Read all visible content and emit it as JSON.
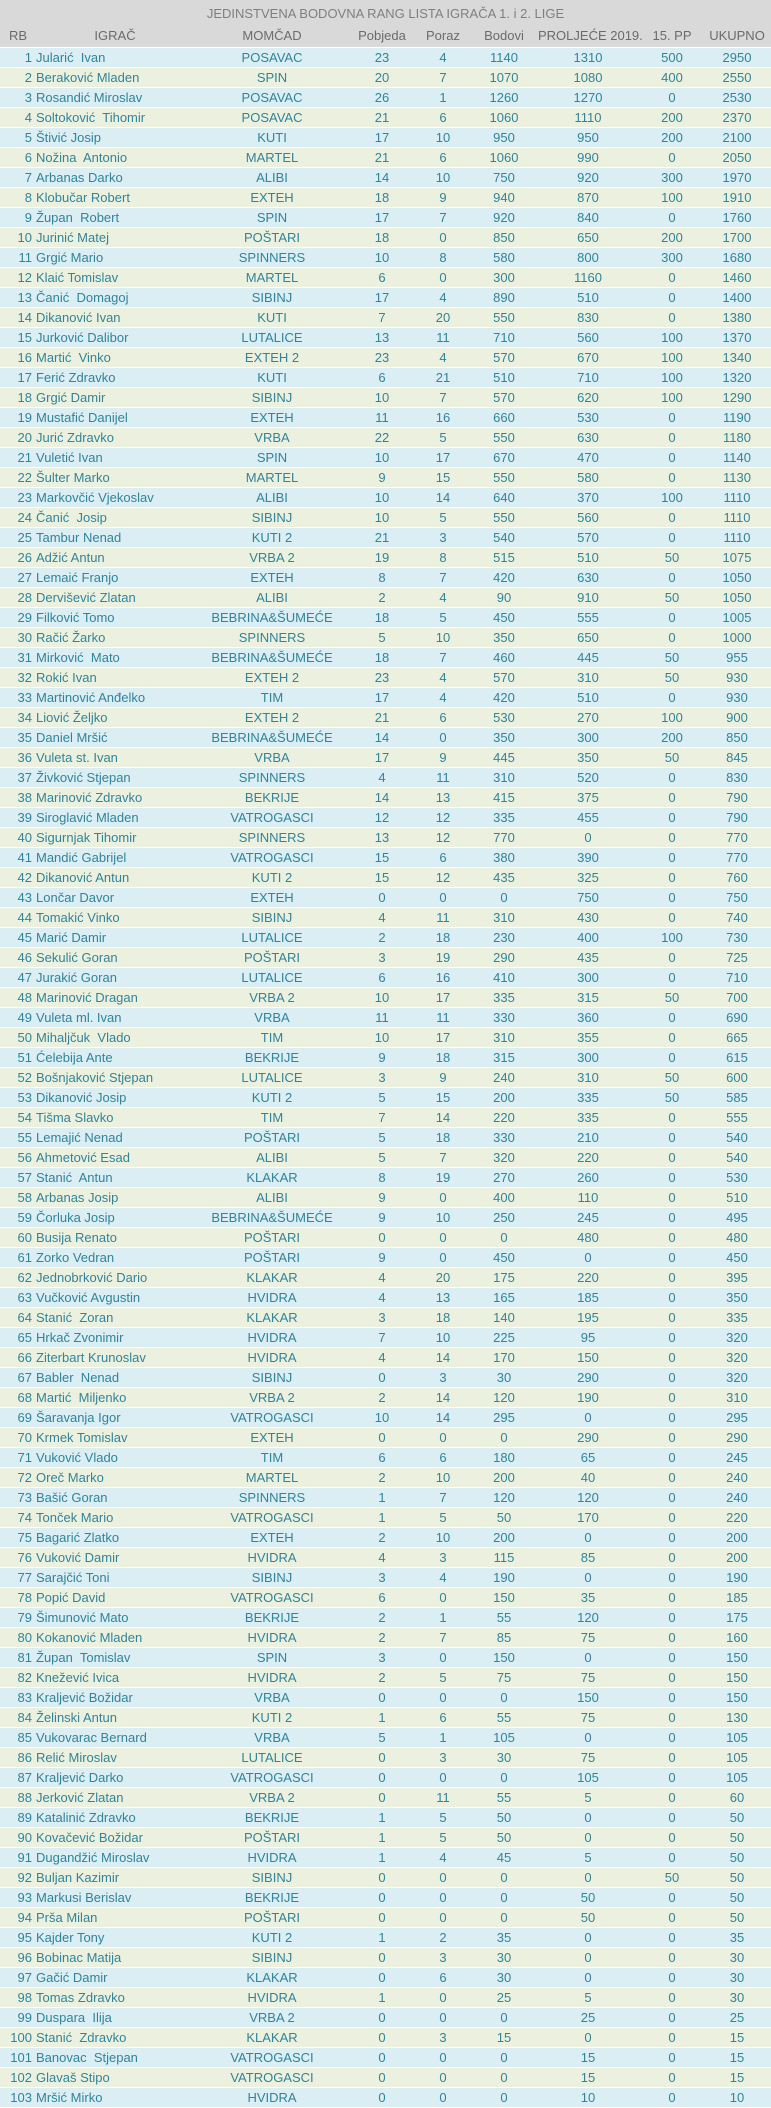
{
  "title": "JEDINSTVENA BODOVNA RANG LISTA IGRAČA 1. i 2. LIGE",
  "columns": [
    "RB",
    "IGRAČ",
    "MOMČAD",
    "Pobjeda",
    "Poraz",
    "Bodovi",
    "PROLJEĆE 2019.",
    "15. PP",
    "UKUPNO"
  ],
  "colors": {
    "header_bg": "#d9d9d9",
    "row_odd": "#daeef3",
    "row_even": "#ebf1de",
    "text": "#31849b"
  },
  "rows": [
    [
      "1",
      "Jularić  Ivan",
      "POSAVAC",
      "23",
      "4",
      "1140",
      "1310",
      "500",
      "2950"
    ],
    [
      "2",
      "Beraković Mladen",
      "SPIN",
      "20",
      "7",
      "1070",
      "1080",
      "400",
      "2550"
    ],
    [
      "3",
      "Rosandić Miroslav",
      "POSAVAC",
      "26",
      "1",
      "1260",
      "1270",
      "0",
      "2530"
    ],
    [
      "4",
      "Soltoković  Tihomir",
      "POSAVAC",
      "21",
      "6",
      "1060",
      "1110",
      "200",
      "2370"
    ],
    [
      "5",
      "Štivić Josip",
      "KUTI",
      "17",
      "10",
      "950",
      "950",
      "200",
      "2100"
    ],
    [
      "6",
      "Nožina  Antonio",
      "MARTEL",
      "21",
      "6",
      "1060",
      "990",
      "0",
      "2050"
    ],
    [
      "7",
      "Arbanas Darko",
      "ALIBI",
      "14",
      "10",
      "750",
      "920",
      "300",
      "1970"
    ],
    [
      "8",
      "Klobučar Robert",
      "EXTEH",
      "18",
      "9",
      "940",
      "870",
      "100",
      "1910"
    ],
    [
      "9",
      "Župan  Robert",
      "SPIN",
      "17",
      "7",
      "920",
      "840",
      "0",
      "1760"
    ],
    [
      "10",
      "Jurinić Matej",
      "POŠTARI",
      "18",
      "0",
      "850",
      "650",
      "200",
      "1700"
    ],
    [
      "11",
      "Grgić Mario",
      "SPINNERS",
      "10",
      "8",
      "580",
      "800",
      "300",
      "1680"
    ],
    [
      "12",
      "Klaić Tomislav",
      "MARTEL",
      "6",
      "0",
      "300",
      "1160",
      "0",
      "1460"
    ],
    [
      "13",
      "Čanić  Domagoj",
      "SIBINJ",
      "17",
      "4",
      "890",
      "510",
      "0",
      "1400"
    ],
    [
      "14",
      "Dikanović Ivan",
      "KUTI",
      "7",
      "20",
      "550",
      "830",
      "0",
      "1380"
    ],
    [
      "15",
      "Jurković Dalibor",
      "LUTALICE",
      "13",
      "11",
      "710",
      "560",
      "100",
      "1370"
    ],
    [
      "16",
      "Martić  Vinko",
      "EXTEH 2",
      "23",
      "4",
      "570",
      "670",
      "100",
      "1340"
    ],
    [
      "17",
      "Ferić Zdravko",
      "KUTI",
      "6",
      "21",
      "510",
      "710",
      "100",
      "1320"
    ],
    [
      "18",
      "Grgić Damir",
      "SIBINJ",
      "10",
      "7",
      "570",
      "620",
      "100",
      "1290"
    ],
    [
      "19",
      "Mustafić Danijel",
      "EXTEH",
      "11",
      "16",
      "660",
      "530",
      "0",
      "1190"
    ],
    [
      "20",
      "Jurić Zdravko",
      "VRBA",
      "22",
      "5",
      "550",
      "630",
      "0",
      "1180"
    ],
    [
      "21",
      "Vuletić Ivan",
      "SPIN",
      "10",
      "17",
      "670",
      "470",
      "0",
      "1140"
    ],
    [
      "22",
      "Šulter Marko",
      "MARTEL",
      "9",
      "15",
      "550",
      "580",
      "0",
      "1130"
    ],
    [
      "23",
      "Markovčić Vjekoslav",
      "ALIBI",
      "10",
      "14",
      "640",
      "370",
      "100",
      "1110"
    ],
    [
      "24",
      "Čanić  Josip",
      "SIBINJ",
      "10",
      "5",
      "550",
      "560",
      "0",
      "1110"
    ],
    [
      "25",
      "Tambur Nenad",
      "KUTI 2",
      "21",
      "3",
      "540",
      "570",
      "0",
      "1110"
    ],
    [
      "26",
      "Adžić Antun",
      "VRBA 2",
      "19",
      "8",
      "515",
      "510",
      "50",
      "1075"
    ],
    [
      "27",
      "Lemaić Franjo",
      "EXTEH",
      "8",
      "7",
      "420",
      "630",
      "0",
      "1050"
    ],
    [
      "28",
      "Dervišević Zlatan",
      "ALIBI",
      "2",
      "4",
      "90",
      "910",
      "50",
      "1050"
    ],
    [
      "29",
      "Filković Tomo",
      "BEBRINA&ŠUMEĆE",
      "18",
      "5",
      "450",
      "555",
      "0",
      "1005"
    ],
    [
      "30",
      "Račić Žarko",
      "SPINNERS",
      "5",
      "10",
      "350",
      "650",
      "0",
      "1000"
    ],
    [
      "31",
      "Mirković  Mato",
      "BEBRINA&ŠUMEĆE",
      "18",
      "7",
      "460",
      "445",
      "50",
      "955"
    ],
    [
      "32",
      "Rokić Ivan",
      "EXTEH 2",
      "23",
      "4",
      "570",
      "310",
      "50",
      "930"
    ],
    [
      "33",
      "Martinović Anđelko",
      "TIM",
      "17",
      "4",
      "420",
      "510",
      "0",
      "930"
    ],
    [
      "34",
      "Liović Željko",
      "EXTEH 2",
      "21",
      "6",
      "530",
      "270",
      "100",
      "900"
    ],
    [
      "35",
      "Daniel Mršić",
      "BEBRINA&ŠUMEĆE",
      "14",
      "0",
      "350",
      "300",
      "200",
      "850"
    ],
    [
      "36",
      "Vuleta st. Ivan",
      "VRBA",
      "17",
      "9",
      "445",
      "350",
      "50",
      "845"
    ],
    [
      "37",
      "Živković Stjepan",
      "SPINNERS",
      "4",
      "11",
      "310",
      "520",
      "0",
      "830"
    ],
    [
      "38",
      "Marinović Zdravko",
      "BEKRIJE",
      "14",
      "13",
      "415",
      "375",
      "0",
      "790"
    ],
    [
      "39",
      "Siroglavić Mladen",
      "VATROGASCI",
      "12",
      "12",
      "335",
      "455",
      "0",
      "790"
    ],
    [
      "40",
      "Sigurnjak Tihomir",
      "SPINNERS",
      "13",
      "12",
      "770",
      "0",
      "0",
      "770"
    ],
    [
      "41",
      "Mandić Gabrijel",
      "VATROGASCI",
      "15",
      "6",
      "380",
      "390",
      "0",
      "770"
    ],
    [
      "42",
      "Dikanović Antun",
      "KUTI 2",
      "15",
      "12",
      "435",
      "325",
      "0",
      "760"
    ],
    [
      "43",
      "Lončar Davor",
      "EXTEH",
      "0",
      "0",
      "0",
      "750",
      "0",
      "750"
    ],
    [
      "44",
      "Tomakić Vinko",
      "SIBINJ",
      "4",
      "11",
      "310",
      "430",
      "0",
      "740"
    ],
    [
      "45",
      "Marić Damir",
      "LUTALICE",
      "2",
      "18",
      "230",
      "400",
      "100",
      "730"
    ],
    [
      "46",
      "Sekulić Goran",
      "POŠTARI",
      "3",
      "19",
      "290",
      "435",
      "0",
      "725"
    ],
    [
      "47",
      "Jurakić Goran",
      "LUTALICE",
      "6",
      "16",
      "410",
      "300",
      "0",
      "710"
    ],
    [
      "48",
      "Marinović Dragan",
      "VRBA 2",
      "10",
      "17",
      "335",
      "315",
      "50",
      "700"
    ],
    [
      "49",
      "Vuleta ml. Ivan",
      "VRBA",
      "11",
      "11",
      "330",
      "360",
      "0",
      "690"
    ],
    [
      "50",
      "Mihaljčuk  Vlado",
      "TIM",
      "10",
      "17",
      "310",
      "355",
      "0",
      "665"
    ],
    [
      "51",
      "Ćelebija Ante",
      "BEKRIJE",
      "9",
      "18",
      "315",
      "300",
      "0",
      "615"
    ],
    [
      "52",
      "Bošnjaković Stjepan",
      "LUTALICE",
      "3",
      "9",
      "240",
      "310",
      "50",
      "600"
    ],
    [
      "53",
      "Dikanović Josip",
      "KUTI 2",
      "5",
      "15",
      "200",
      "335",
      "50",
      "585"
    ],
    [
      "54",
      "Tišma Slavko",
      "TIM",
      "7",
      "14",
      "220",
      "335",
      "0",
      "555"
    ],
    [
      "55",
      "Lemajić Nenad",
      "POŠTARI",
      "5",
      "18",
      "330",
      "210",
      "0",
      "540"
    ],
    [
      "56",
      "Ahmetović Esad",
      "ALIBI",
      "5",
      "7",
      "320",
      "220",
      "0",
      "540"
    ],
    [
      "57",
      "Stanić  Antun",
      "KLAKAR",
      "8",
      "19",
      "270",
      "260",
      "0",
      "530"
    ],
    [
      "58",
      "Arbanas Josip",
      "ALIBI",
      "9",
      "0",
      "400",
      "110",
      "0",
      "510"
    ],
    [
      "59",
      "Čorluka Josip",
      "BEBRINA&ŠUMEĆE",
      "9",
      "10",
      "250",
      "245",
      "0",
      "495"
    ],
    [
      "60",
      "Busija Renato",
      "POŠTARI",
      "0",
      "0",
      "0",
      "480",
      "0",
      "480"
    ],
    [
      "61",
      "Zorko Vedran",
      "POŠTARI",
      "9",
      "0",
      "450",
      "0",
      "0",
      "450"
    ],
    [
      "62",
      "Jednobrković Dario",
      "KLAKAR",
      "4",
      "20",
      "175",
      "220",
      "0",
      "395"
    ],
    [
      "63",
      "Vučković Avgustin",
      "HVIDRA",
      "4",
      "13",
      "165",
      "185",
      "0",
      "350"
    ],
    [
      "64",
      "Stanić  Zoran",
      "KLAKAR",
      "3",
      "18",
      "140",
      "195",
      "0",
      "335"
    ],
    [
      "65",
      "Hrkač Zvonimir",
      "HVIDRA",
      "7",
      "10",
      "225",
      "95",
      "0",
      "320"
    ],
    [
      "66",
      "Ziterbart Krunoslav",
      "HVIDRA",
      "4",
      "14",
      "170",
      "150",
      "0",
      "320"
    ],
    [
      "67",
      "Babler  Nenad",
      "SIBINJ",
      "0",
      "3",
      "30",
      "290",
      "0",
      "320"
    ],
    [
      "68",
      "Martić  Miljenko",
      "VRBA 2",
      "2",
      "14",
      "120",
      "190",
      "0",
      "310"
    ],
    [
      "69",
      "Šaravanja Igor",
      "VATROGASCI",
      "10",
      "14",
      "295",
      "0",
      "0",
      "295"
    ],
    [
      "70",
      "Krmek Tomislav",
      "EXTEH",
      "0",
      "0",
      "0",
      "290",
      "0",
      "290"
    ],
    [
      "71",
      "Vuković Vlado",
      "TIM",
      "6",
      "6",
      "180",
      "65",
      "0",
      "245"
    ],
    [
      "72",
      "Oreč Marko",
      "MARTEL",
      "2",
      "10",
      "200",
      "40",
      "0",
      "240"
    ],
    [
      "73",
      "Bašić Goran",
      "SPINNERS",
      "1",
      "7",
      "120",
      "120",
      "0",
      "240"
    ],
    [
      "74",
      "Tonček Mario",
      "VATROGASCI",
      "1",
      "5",
      "50",
      "170",
      "0",
      "220"
    ],
    [
      "75",
      "Bagarić Zlatko",
      "EXTEH",
      "2",
      "10",
      "200",
      "0",
      "0",
      "200"
    ],
    [
      "76",
      "Vuković Damir",
      "HVIDRA",
      "4",
      "3",
      "115",
      "85",
      "0",
      "200"
    ],
    [
      "77",
      "Sarajčić Toni",
      "SIBINJ",
      "3",
      "4",
      "190",
      "0",
      "0",
      "190"
    ],
    [
      "78",
      "Popić David",
      "VATROGASCI",
      "6",
      "0",
      "150",
      "35",
      "0",
      "185"
    ],
    [
      "79",
      "Šimunović Mato",
      "BEKRIJE",
      "2",
      "1",
      "55",
      "120",
      "0",
      "175"
    ],
    [
      "80",
      "Kokanović Mladen",
      "HVIDRA",
      "2",
      "7",
      "85",
      "75",
      "0",
      "160"
    ],
    [
      "81",
      "Župan  Tomislav",
      "SPIN",
      "3",
      "0",
      "150",
      "0",
      "0",
      "150"
    ],
    [
      "82",
      "Knežević Ivica",
      "HVIDRA",
      "2",
      "5",
      "75",
      "75",
      "0",
      "150"
    ],
    [
      "83",
      "Kraljević Božidar",
      "VRBA",
      "0",
      "0",
      "0",
      "150",
      "0",
      "150"
    ],
    [
      "84",
      "Želinski Antun",
      "KUTI 2",
      "1",
      "6",
      "55",
      "75",
      "0",
      "130"
    ],
    [
      "85",
      "Vukovarac Bernard",
      "VRBA",
      "5",
      "1",
      "105",
      "0",
      "0",
      "105"
    ],
    [
      "86",
      "Relić Miroslav",
      "LUTALICE",
      "0",
      "3",
      "30",
      "75",
      "0",
      "105"
    ],
    [
      "87",
      "Kraljević Darko",
      "VATROGASCI",
      "0",
      "0",
      "0",
      "105",
      "0",
      "105"
    ],
    [
      "88",
      "Jerković Zlatan",
      "VRBA 2",
      "0",
      "11",
      "55",
      "5",
      "0",
      "60"
    ],
    [
      "89",
      "Katalinić Zdravko",
      "BEKRIJE",
      "1",
      "5",
      "50",
      "0",
      "0",
      "50"
    ],
    [
      "90",
      "Kovačević Božidar",
      "POŠTARI",
      "1",
      "5",
      "50",
      "0",
      "0",
      "50"
    ],
    [
      "91",
      "Dugandžić Miroslav",
      "HVIDRA",
      "1",
      "4",
      "45",
      "5",
      "0",
      "50"
    ],
    [
      "92",
      "Buljan Kazimir",
      "SIBINJ",
      "0",
      "0",
      "0",
      "0",
      "50",
      "50"
    ],
    [
      "93",
      "Markusi Berislav",
      "BEKRIJE",
      "0",
      "0",
      "0",
      "50",
      "0",
      "50"
    ],
    [
      "94",
      "Prša Milan",
      "POŠTARI",
      "0",
      "0",
      "0",
      "50",
      "0",
      "50"
    ],
    [
      "95",
      "Kajder Tony",
      "KUTI 2",
      "1",
      "2",
      "35",
      "0",
      "0",
      "35"
    ],
    [
      "96",
      "Bobinac Matija",
      "SIBINJ",
      "0",
      "3",
      "30",
      "0",
      "0",
      "30"
    ],
    [
      "97",
      "Gačić Damir",
      "KLAKAR",
      "0",
      "6",
      "30",
      "0",
      "0",
      "30"
    ],
    [
      "98",
      "Tomas Zdravko",
      "HVIDRA",
      "1",
      "0",
      "25",
      "5",
      "0",
      "30"
    ],
    [
      "99",
      "Duspara  Ilija",
      "VRBA 2",
      "0",
      "0",
      "0",
      "25",
      "0",
      "25"
    ],
    [
      "100",
      "Stanić  Zdravko",
      "KLAKAR",
      "0",
      "3",
      "15",
      "0",
      "0",
      "15"
    ],
    [
      "101",
      "Banovac  Stjepan",
      "VATROGASCI",
      "0",
      "0",
      "0",
      "15",
      "0",
      "15"
    ],
    [
      "102",
      "Glavaš Stipo",
      "VATROGASCI",
      "0",
      "0",
      "0",
      "15",
      "0",
      "15"
    ],
    [
      "103",
      "Mršić Mirko",
      "HVIDRA",
      "0",
      "0",
      "0",
      "10",
      "0",
      "10"
    ]
  ]
}
